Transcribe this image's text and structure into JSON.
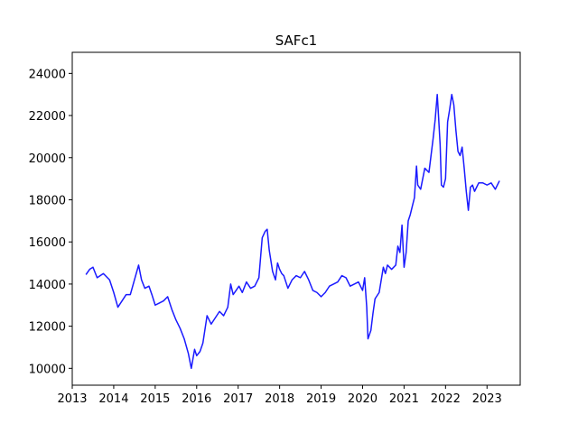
{
  "chart_data": {
    "type": "line",
    "title": "SAFc1",
    "xlabel": "",
    "ylabel": "",
    "xlim": [
      2013.0,
      2023.8
    ],
    "ylim": [
      9200,
      25000
    ],
    "grid": false,
    "legend": "none",
    "x_ticks": [
      2013,
      2014,
      2015,
      2016,
      2017,
      2018,
      2019,
      2020,
      2021,
      2022,
      2023
    ],
    "x_tick_labels": [
      "2013",
      "2014",
      "2015",
      "2016",
      "2017",
      "2018",
      "2019",
      "2020",
      "2021",
      "2022",
      "2023"
    ],
    "y_ticks": [
      10000,
      12000,
      14000,
      16000,
      18000,
      20000,
      22000,
      24000
    ],
    "y_tick_labels": [
      "10000",
      "12000",
      "14000",
      "16000",
      "18000",
      "20000",
      "22000",
      "24000"
    ],
    "series": [
      {
        "color": "#1a1aff",
        "x": [
          2013.33,
          2013.42,
          2013.5,
          2013.6,
          2013.75,
          2013.9,
          2014.0,
          2014.1,
          2014.2,
          2014.3,
          2014.4,
          2014.5,
          2014.6,
          2014.67,
          2014.75,
          2014.85,
          2014.92,
          2015.0,
          2015.1,
          2015.2,
          2015.3,
          2015.4,
          2015.5,
          2015.6,
          2015.7,
          2015.8,
          2015.87,
          2015.95,
          2016.0,
          2016.08,
          2016.15,
          2016.25,
          2016.35,
          2016.45,
          2016.55,
          2016.65,
          2016.75,
          2016.82,
          2016.88,
          2016.95,
          2017.02,
          2017.1,
          2017.2,
          2017.3,
          2017.4,
          2017.5,
          2017.58,
          2017.65,
          2017.7,
          2017.75,
          2017.83,
          2017.9,
          2017.95,
          2018.0,
          2018.05,
          2018.1,
          2018.2,
          2018.3,
          2018.4,
          2018.5,
          2018.6,
          2018.7,
          2018.8,
          2018.9,
          2019.0,
          2019.1,
          2019.2,
          2019.3,
          2019.4,
          2019.5,
          2019.6,
          2019.7,
          2019.8,
          2019.9,
          2020.0,
          2020.05,
          2020.1,
          2020.13,
          2020.2,
          2020.25,
          2020.3,
          2020.4,
          2020.5,
          2020.55,
          2020.6,
          2020.7,
          2020.8,
          2020.85,
          2020.9,
          2020.95,
          2021.0,
          2021.05,
          2021.1,
          2021.15,
          2021.2,
          2021.25,
          2021.3,
          2021.33,
          2021.4,
          2021.5,
          2021.6,
          2021.7,
          2021.75,
          2021.8,
          2021.83,
          2021.87,
          2021.9,
          2021.95,
          2022.0,
          2022.05,
          2022.1,
          2022.15,
          2022.2,
          2022.25,
          2022.3,
          2022.35,
          2022.4,
          2022.45,
          2022.5,
          2022.55,
          2022.6,
          2022.65,
          2022.7,
          2022.8,
          2022.9,
          2023.0,
          2023.1,
          2023.2,
          2023.3
        ],
        "values": [
          14450,
          14700,
          14800,
          14300,
          14500,
          14200,
          13600,
          12900,
          13200,
          13500,
          13500,
          14200,
          14900,
          14200,
          13800,
          13900,
          13500,
          13000,
          13100,
          13200,
          13400,
          12800,
          12300,
          11900,
          11400,
          10700,
          10000,
          10900,
          10600,
          10800,
          11200,
          12500,
          12100,
          12400,
          12700,
          12500,
          12900,
          14000,
          13500,
          13700,
          13900,
          13600,
          14100,
          13800,
          13900,
          14300,
          16200,
          16500,
          16600,
          15600,
          14600,
          14200,
          15000,
          14700,
          14500,
          14400,
          13800,
          14200,
          14400,
          14300,
          14600,
          14200,
          13700,
          13600,
          13400,
          13600,
          13900,
          14000,
          14100,
          14400,
          14300,
          13900,
          14000,
          14100,
          13700,
          14300,
          12900,
          11400,
          11800,
          12600,
          13300,
          13600,
          14800,
          14500,
          14900,
          14700,
          14900,
          15800,
          15500,
          16800,
          14800,
          15500,
          17000,
          17300,
          17700,
          18100,
          19600,
          18700,
          18500,
          19500,
          19300,
          20900,
          21800,
          23000,
          22000,
          20600,
          18700,
          18600,
          19000,
          21700,
          22300,
          23000,
          22500,
          21300,
          20300,
          20100,
          20500,
          19500,
          18400,
          17500,
          18600,
          18700,
          18400,
          18800,
          18800,
          18700,
          18800,
          18500,
          18900
        ]
      }
    ]
  }
}
